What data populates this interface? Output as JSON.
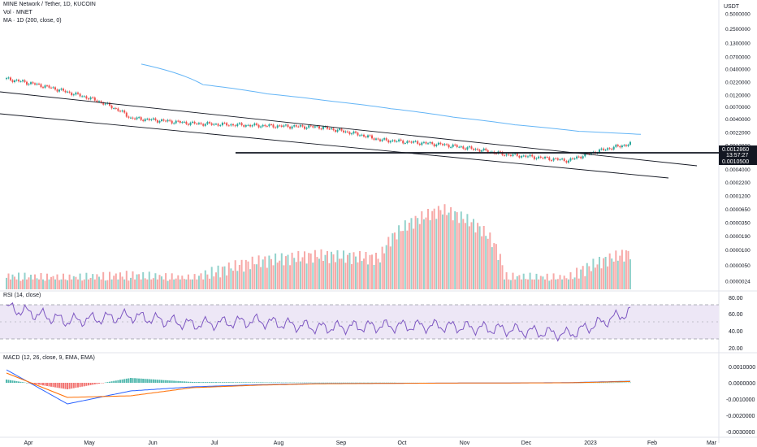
{
  "header": {
    "symbol_line": "MINE Network / Tether, 1D, KUCOIN",
    "vol_line": "Vol · MNET",
    "ma_line": "MA · 1D (200, close, 0)"
  },
  "price_axis": {
    "currency": "USDT",
    "scale": "log",
    "ticks": [
      "0.5000000",
      "0.2500000",
      "0.1300000",
      "0.0700000",
      "0.0400000",
      "0.0220000",
      "0.0120000",
      "0.0070000",
      "0.0040000",
      "0.0022000",
      "0.0012000",
      "0.0007000",
      "0.0004000",
      "0.0002200",
      "0.0001200",
      "0.0000650",
      "0.0000350",
      "0.0000190",
      "0.0000100",
      "0.0000050",
      "0.0000024"
    ],
    "last_price": "0.0012860",
    "countdown": "13:57:27",
    "level_label": "0.0010500"
  },
  "rsi": {
    "title": "RSI (14, close)",
    "ticks": [
      "80.00",
      "60.00",
      "40.00",
      "20.00"
    ],
    "upper_band": 70,
    "lower_band": 30
  },
  "macd": {
    "title": "MACD (12, 26, close, 9, EMA, EMA)",
    "ticks": [
      "0.0010000",
      "0.0000000",
      "-0.0010000",
      "-0.0020000",
      "-0.0030000"
    ]
  },
  "time_axis": {
    "labels": [
      "Apr",
      "May",
      "Jun",
      "Jul",
      "Aug",
      "Sep",
      "Oct",
      "Nov",
      "Dec",
      "2023",
      "Feb",
      "Mar"
    ]
  },
  "colors": {
    "up": "#26a69a",
    "down": "#ef5350",
    "ma": "#64b5f6",
    "rsi_line": "#7e57c2",
    "macd_line": "#2962ff",
    "signal_line": "#ff6d00",
    "rsi_band_fill": "#ede7f6",
    "trendline": "#131722"
  },
  "chart_data": [
    {
      "type": "candlestick",
      "title": "MINE Network / Tether, 1D, KUCOIN",
      "ylabel": "USDT",
      "yscale": "log",
      "ylim": [
        2.4e-06,
        0.5
      ],
      "x": [
        "Apr",
        "May",
        "Jun",
        "Jul",
        "Aug",
        "Sep",
        "Oct",
        "Nov",
        "Dec",
        "2023",
        "Feb"
      ],
      "series": [
        {
          "name": "close",
          "values": [
            0.0253,
            0.0138,
            0.0042,
            0.0033,
            0.003,
            0.0028,
            0.00155,
            0.00125,
            0.0008,
            0.0006,
            0.00129
          ]
        },
        {
          "name": "MA · 1D (200, close, 0)",
          "values": [
            null,
            null,
            0.05,
            0.0195,
            0.0128,
            0.0092,
            0.0065,
            0.0044,
            0.0031,
            0.0023,
            0.002
          ]
        }
      ],
      "annotations": [
        "0.0010500"
      ]
    },
    {
      "type": "bar",
      "title": "Vol · MNET",
      "x": [
        "Apr",
        "May",
        "Jun",
        "Jul",
        "Aug",
        "Sep",
        "Oct",
        "Nov",
        "Dec",
        "2023",
        "Feb"
      ],
      "values": [
        2.8e-06,
        2.6e-06,
        3e-06,
        2.5e-06,
        6e-06,
        8e-06,
        7e-06,
        6.5e-05,
        2.8e-06,
        2.6e-06,
        9e-06
      ]
    },
    {
      "type": "line",
      "title": "RSI (14, close)",
      "ylim": [
        20,
        85
      ],
      "x": [
        "Apr",
        "May",
        "Jun",
        "Jul",
        "Aug",
        "Sep",
        "Oct",
        "Nov",
        "Dec",
        "2023",
        "Feb"
      ],
      "values": [
        68,
        52,
        58,
        48,
        52,
        44,
        46,
        46,
        42,
        36,
        63
      ]
    },
    {
      "type": "line",
      "title": "MACD (12, 26, close, 9, EMA, EMA)",
      "ylim": [
        -0.003,
        0.0015
      ],
      "x": [
        "Apr",
        "May",
        "Jun",
        "Jul",
        "Aug",
        "Sep",
        "Oct",
        "Nov",
        "Dec",
        "2023",
        "Feb"
      ],
      "series": [
        {
          "name": "MACD",
          "values": [
            0.0008,
            -0.0013,
            -0.0005,
            -0.00025,
            -0.00012,
            -5e-05,
            -3e-05,
            -2e-05,
            -1e-05,
            1e-05,
            0.0001
          ]
        },
        {
          "name": "Signal",
          "values": [
            0.0006,
            -0.0009,
            -0.0008,
            -0.0003,
            -0.00015,
            -6e-05,
            -4e-05,
            -2e-05,
            -1e-05,
            0.0,
            8e-05
          ]
        }
      ]
    }
  ]
}
